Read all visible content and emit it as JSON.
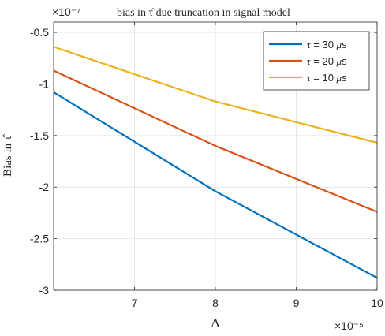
{
  "chart_data": {
    "type": "line",
    "title": "bias in τ̂ due truncation in signal model",
    "xlabel": "Δ",
    "ylabel": "Bias in τ̂",
    "x_exponent": "×10⁻⁵",
    "y_exponent": "×10⁻⁷",
    "x": [
      6,
      8,
      10
    ],
    "xlim": [
      6,
      10
    ],
    "ylim": [
      -3,
      -0.4
    ],
    "xticks": [
      7,
      8,
      9,
      10
    ],
    "xtick_labels": [
      "7",
      "8",
      "9",
      "10"
    ],
    "yticks": [
      -3,
      -2.5,
      -2,
      -1.5,
      -1,
      -0.5
    ],
    "ytick_labels": [
      "-3",
      "-2.5",
      "-2",
      "-1.5",
      "-1",
      "-0.5"
    ],
    "grid": true,
    "legend_position": "top-right",
    "series": [
      {
        "name": "τ = 30 μs",
        "tau": "τ",
        "rest": " = 30 ",
        "mu": "μ",
        "unit": "s",
        "color": "#0072BD",
        "values": [
          -1.08,
          -2.04,
          -2.88
        ]
      },
      {
        "name": "τ = 20 μs",
        "tau": "τ",
        "rest": " = 20 ",
        "mu": "μ",
        "unit": "s",
        "color": "#D95319",
        "values": [
          -0.87,
          -1.6,
          -2.24
        ]
      },
      {
        "name": "τ = 10 μs",
        "tau": "τ",
        "rest": " = 10 ",
        "mu": "μ",
        "unit": "s",
        "color": "#EDB120",
        "values": [
          -0.64,
          -1.17,
          -1.57
        ]
      }
    ]
  }
}
